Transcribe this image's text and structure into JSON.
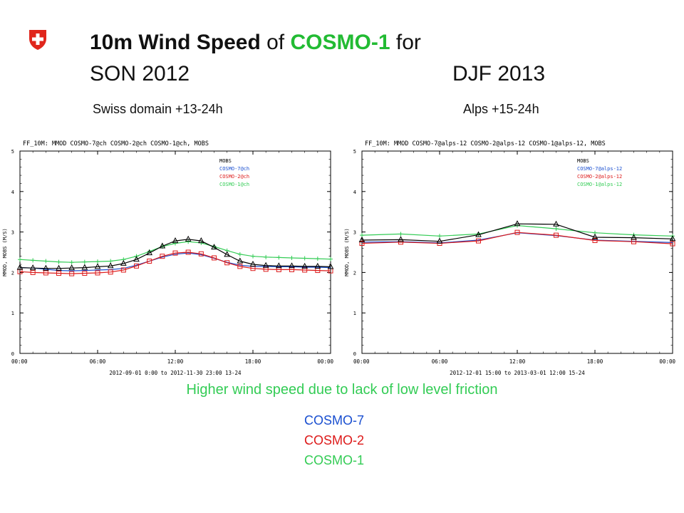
{
  "header": {
    "title_bold": "10m Wind Speed",
    "title_of": "of",
    "title_model": "COSMO-1",
    "title_for": "for",
    "season_left": "SON 2012",
    "season_right": "DJF 2013",
    "subtitle_left": "Swiss domain +13-24h",
    "subtitle_right": "Alps +15-24h",
    "note": "Higher wind speed due to lack of low level friction",
    "legend": [
      "COSMO-7",
      "COSMO-2",
      "COSMO-1"
    ]
  },
  "colors": {
    "title_model": "#22bb33",
    "mobs": "#000000",
    "cosmo7": "#1a4fd0",
    "cosmo2": "#dd1a1a",
    "cosmo1": "#33cc55",
    "flag": "#e0261c"
  },
  "chart_data": [
    {
      "type": "line",
      "title": "FF_10M: MMOD COSMO-7@ch COSMO-2@ch COSMO-1@ch, MOBS",
      "xlabel": "2012-09-01  0:00 to 2012-11-30 23:00 13-24",
      "ylabel": "MMOD, MOBS (M/S)",
      "ylim": [
        0,
        5
      ],
      "yticks": [
        "0",
        "1",
        "2",
        "3",
        "4",
        "5"
      ],
      "xlim": [
        0,
        24
      ],
      "xticks": [
        "00:00",
        "06:00",
        "12:00",
        "18:00",
        "00:00"
      ],
      "x": [
        0,
        1,
        2,
        3,
        4,
        5,
        6,
        7,
        8,
        9,
        10,
        11,
        12,
        13,
        14,
        15,
        16,
        17,
        18,
        19,
        20,
        21,
        22,
        23,
        24
      ],
      "legend_position": "top-right",
      "series": [
        {
          "name": "MOBS",
          "marker": "triangle",
          "values": [
            2.12,
            2.11,
            2.1,
            2.1,
            2.11,
            2.12,
            2.14,
            2.16,
            2.22,
            2.32,
            2.48,
            2.65,
            2.78,
            2.82,
            2.78,
            2.62,
            2.44,
            2.28,
            2.2,
            2.17,
            2.16,
            2.16,
            2.15,
            2.15,
            2.14
          ]
        },
        {
          "name": "COSMO-7@ch",
          "marker": "none",
          "values": [
            2.12,
            2.11,
            2.08,
            2.05,
            2.04,
            2.05,
            2.06,
            2.07,
            2.1,
            2.18,
            2.28,
            2.38,
            2.45,
            2.48,
            2.44,
            2.35,
            2.25,
            2.18,
            2.15,
            2.15,
            2.14,
            2.14,
            2.13,
            2.13,
            2.12
          ]
        },
        {
          "name": "COSMO-2@ch",
          "marker": "square",
          "values": [
            2.02,
            2.0,
            1.99,
            1.98,
            1.97,
            1.98,
            1.99,
            2.01,
            2.06,
            2.16,
            2.28,
            2.4,
            2.48,
            2.5,
            2.46,
            2.36,
            2.24,
            2.15,
            2.1,
            2.08,
            2.07,
            2.07,
            2.06,
            2.05,
            2.04
          ]
        },
        {
          "name": "COSMO-1@ch",
          "marker": "plus",
          "values": [
            2.32,
            2.3,
            2.28,
            2.26,
            2.25,
            2.26,
            2.27,
            2.28,
            2.32,
            2.4,
            2.52,
            2.64,
            2.72,
            2.76,
            2.73,
            2.64,
            2.54,
            2.45,
            2.4,
            2.38,
            2.37,
            2.36,
            2.35,
            2.34,
            2.33
          ]
        }
      ]
    },
    {
      "type": "line",
      "title": "FF_10M: MMOD COSMO-7@alps-12 COSMO-2@alps-12 COSMO-1@alps-12, MOBS",
      "xlabel": "2012-12-01 15:00 to 2013-03-01 12:00 15-24",
      "ylabel": "MMOD, MOBS (M/S)",
      "ylim": [
        0,
        5
      ],
      "yticks": [
        "0",
        "1",
        "2",
        "3",
        "4",
        "5"
      ],
      "xlim": [
        0,
        24
      ],
      "xticks": [
        "00:00",
        "06:00",
        "12:00",
        "18:00",
        "00:00"
      ],
      "x": [
        0,
        3,
        6,
        9,
        12,
        15,
        18,
        21,
        24
      ],
      "legend_position": "top-right",
      "series": [
        {
          "name": "MOBS",
          "marker": "triangle",
          "values": [
            2.8,
            2.81,
            2.77,
            2.93,
            3.2,
            3.19,
            2.87,
            2.86,
            2.83
          ]
        },
        {
          "name": "COSMO-7@alps-12",
          "marker": "none",
          "values": [
            2.75,
            2.76,
            2.73,
            2.8,
            2.98,
            2.91,
            2.8,
            2.77,
            2.74
          ]
        },
        {
          "name": "COSMO-2@alps-12",
          "marker": "square",
          "values": [
            2.72,
            2.75,
            2.72,
            2.78,
            2.99,
            2.92,
            2.79,
            2.76,
            2.71
          ]
        },
        {
          "name": "COSMO-1@alps-12",
          "marker": "plus",
          "values": [
            2.92,
            2.95,
            2.9,
            2.95,
            3.16,
            3.08,
            2.98,
            2.93,
            2.9
          ]
        }
      ]
    }
  ]
}
